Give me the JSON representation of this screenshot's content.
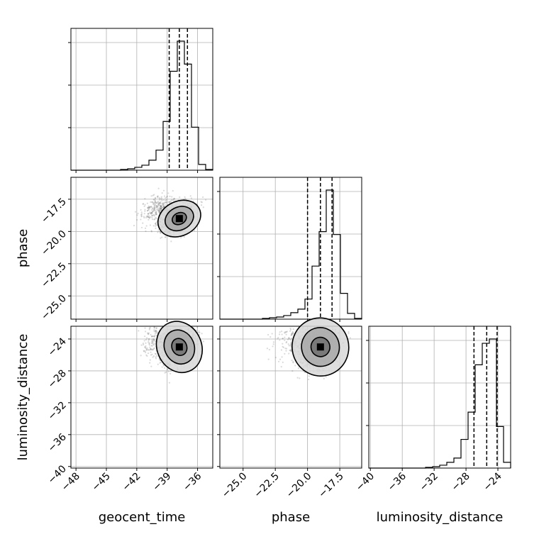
{
  "chart_data": {
    "type": "corner",
    "parameters": [
      "geocent_time",
      "phase",
      "luminosity_distance"
    ],
    "axis_labels": {
      "geocent_time": "geocent_time",
      "phase": "phase",
      "luminosity_distance": "luminosity_distance"
    },
    "ranges": {
      "geocent_time": [
        -48.5,
        -34.5
      ],
      "phase": [
        -26.8,
        -15.8
      ],
      "luminosity_distance": [
        -40.2,
        -22.4
      ]
    },
    "ticks": {
      "geocent_time": {
        "values": [
          -48,
          -45,
          -42,
          -39,
          -36
        ],
        "labels": [
          "−48",
          "−45",
          "−42",
          "−39",
          "−36"
        ]
      },
      "phase": {
        "values": [
          -25.0,
          -22.5,
          -20.0,
          -17.5
        ],
        "labels": [
          "−25.0",
          "−22.5",
          "−20.0",
          "−17.5"
        ]
      },
      "luminosity_distance": {
        "values": [
          -40,
          -36,
          -32,
          -28,
          -24
        ],
        "labels": [
          "−40",
          "−36",
          "−32",
          "−28",
          "−24"
        ]
      }
    },
    "grid": true,
    "quantiles": {
      "geocent_time": [
        -38.8,
        -37.8,
        -37.0
      ],
      "phase": [
        -20.0,
        -19.0,
        -18.1
      ],
      "luminosity_distance": [
        -27.0,
        -25.4,
        -24.1
      ]
    },
    "histograms": {
      "geocent_time": {
        "edges": [
          -48.5,
          -47.8,
          -47.1,
          -46.4,
          -45.7,
          -45.0,
          -44.3,
          -43.6,
          -42.9,
          -42.2,
          -41.5,
          -40.8,
          -40.1,
          -39.4,
          -38.7,
          -38.0,
          -37.3,
          -36.6,
          -35.9,
          -35.2,
          -34.5
        ],
        "counts": [
          0,
          0,
          0,
          0,
          0,
          0,
          0,
          1,
          2,
          4,
          7,
          14,
          28,
          68,
          138,
          180,
          148,
          60,
          8,
          1
        ]
      },
      "phase": {
        "edges": [
          -26.8,
          -26.25,
          -25.7,
          -25.15,
          -24.6,
          -24.05,
          -23.5,
          -22.95,
          -22.4,
          -21.85,
          -21.3,
          -20.75,
          -20.2,
          -19.65,
          -19.1,
          -18.55,
          -18.0,
          -17.45,
          -16.9,
          -16.35,
          -15.8
        ],
        "counts": [
          0,
          0,
          0,
          0,
          0,
          0,
          1,
          2,
          3,
          5,
          9,
          14,
          28,
          74,
          122,
          180,
          118,
          36,
          8,
          1
        ]
      },
      "luminosity_distance": {
        "edges": [
          -40.2,
          -39.31,
          -38.42,
          -37.53,
          -36.64,
          -35.75,
          -34.86,
          -33.97,
          -33.08,
          -32.19,
          -31.3,
          -30.41,
          -29.52,
          -28.63,
          -27.74,
          -26.85,
          -25.96,
          -25.07,
          -24.18,
          -23.29,
          -22.4
        ],
        "counts": [
          0,
          0,
          0,
          0,
          0,
          0,
          0,
          0,
          1,
          2,
          4,
          8,
          14,
          40,
          78,
          144,
          174,
          180,
          58,
          8
        ]
      }
    },
    "joint_peaks": {
      "phase_vs_geocent_time": {
        "x": -37.8,
        "y": -19.0
      },
      "luminosity_distance_vs_geocent_time": {
        "x": -37.8,
        "y": -25.0
      },
      "luminosity_distance_vs_phase": {
        "x": -19.0,
        "y": -25.0
      }
    }
  }
}
